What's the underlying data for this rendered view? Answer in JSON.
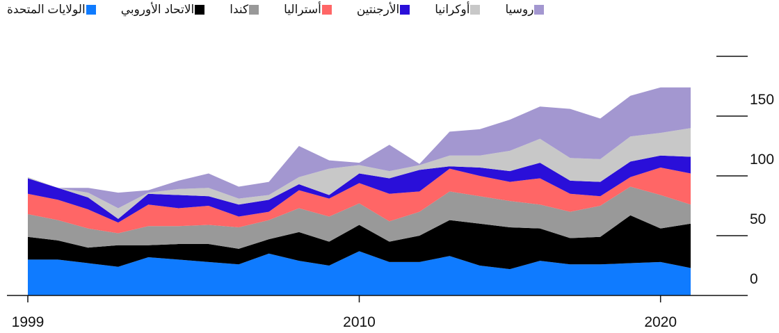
{
  "chart_data": {
    "type": "stacked_area",
    "x": [
      1999,
      2000,
      2001,
      2002,
      2003,
      2004,
      2005,
      2006,
      2007,
      2008,
      2009,
      2010,
      2011,
      2012,
      2013,
      2014,
      2015,
      2016,
      2017,
      2018,
      2019,
      2020,
      2021
    ],
    "series": [
      {
        "name": "الولايات المتحدة",
        "color": "#0f7bff",
        "values": [
          30,
          30,
          27,
          24,
          32,
          30,
          28,
          26,
          35,
          29,
          25,
          37,
          28,
          28,
          33,
          25,
          22,
          29,
          26,
          26,
          27,
          28,
          23
        ]
      },
      {
        "name": "الاتحاد الأوروبي",
        "color": "#000000",
        "values": [
          19,
          16,
          13,
          18,
          10,
          13,
          15,
          13,
          12,
          24,
          20,
          22,
          17,
          22,
          30,
          35,
          35,
          27,
          22,
          23,
          40,
          28,
          37
        ]
      },
      {
        "name": "كندا",
        "color": "#999999",
        "values": [
          19,
          17,
          16,
          10,
          16,
          15,
          16,
          18,
          16,
          20,
          21,
          18,
          17,
          20,
          24,
          23,
          22,
          20,
          22,
          26,
          24,
          28,
          16
        ]
      },
      {
        "name": "أستراليا",
        "color": "#ff6666",
        "values": [
          17,
          17,
          16,
          9,
          18,
          15,
          16,
          9,
          7,
          15,
          15,
          17,
          23,
          17,
          19,
          17,
          16,
          22,
          15,
          8,
          8,
          23,
          26
        ]
      },
      {
        "name": "الأرجنتين",
        "color": "#2a0fd9",
        "values": [
          13,
          10,
          10,
          3,
          9,
          11,
          8,
          10,
          10,
          5,
          3,
          8,
          13,
          18,
          2,
          7,
          9,
          13,
          11,
          12,
          13,
          10,
          14
        ]
      },
      {
        "name": "أوكرانيا",
        "color": "#c8c8c8",
        "values": [
          1,
          0,
          4,
          9,
          1,
          5,
          7,
          5,
          4,
          6,
          22,
          7,
          6,
          4,
          9,
          10,
          17,
          20,
          19,
          19,
          21,
          19,
          24
        ]
      },
      {
        "name": "روسيا",
        "color": "#a397d0",
        "values": [
          0,
          0,
          4,
          13,
          2,
          7,
          12,
          10,
          11,
          26,
          7,
          2,
          22,
          1,
          20,
          22,
          26,
          27,
          41,
          34,
          34,
          38,
          34
        ]
      }
    ],
    "xlim": [
      1999,
      2021
    ],
    "xticks": [
      1999,
      2010,
      2020
    ],
    "ylim": [
      0,
      200
    ],
    "yticks": [
      0,
      50,
      100,
      150
    ]
  }
}
